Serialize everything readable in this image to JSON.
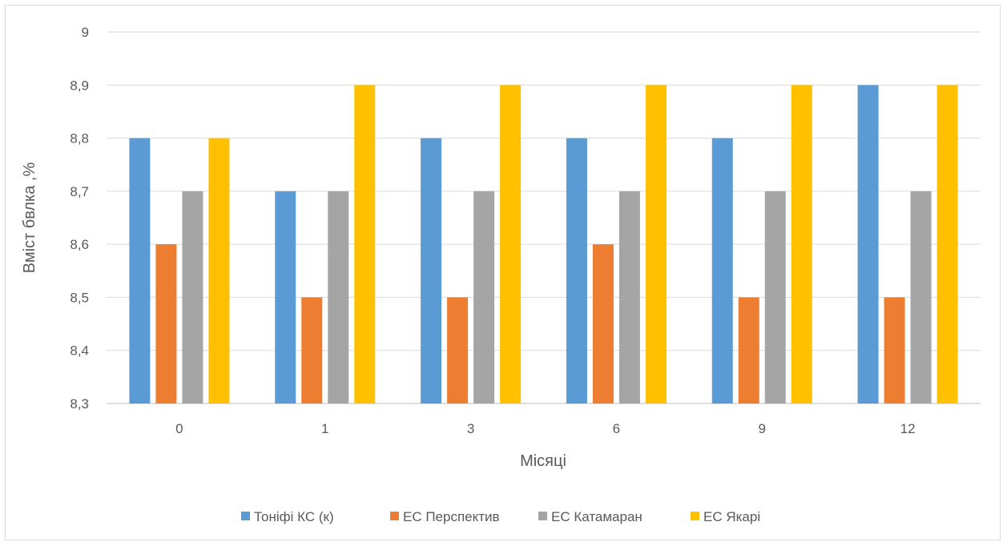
{
  "chart_data": {
    "type": "bar",
    "title": "",
    "xlabel": "Місяці",
    "ylabel": "Вміст бвлка ,%",
    "categories": [
      "0",
      "1",
      "3",
      "6",
      "9",
      "12"
    ],
    "ylim": [
      8.3,
      9.0
    ],
    "yticks": [
      "8,3",
      "8,4",
      "8,5",
      "8,6",
      "8,7",
      "8,8",
      "8,9",
      "9"
    ],
    "grid": true,
    "legend_position": "bottom",
    "series": [
      {
        "name": "Тоніфі КС (к)",
        "color": "#5b9bd5",
        "values": [
          8.8,
          8.7,
          8.8,
          8.8,
          8.8,
          8.9
        ]
      },
      {
        "name": "ЕС Перспектив",
        "color": "#ed7d31",
        "values": [
          8.6,
          8.5,
          8.5,
          8.6,
          8.5,
          8.5
        ]
      },
      {
        "name": "ЕС Катамаран",
        "color": "#a5a5a5",
        "values": [
          8.7,
          8.7,
          8.7,
          8.7,
          8.7,
          8.7
        ]
      },
      {
        "name": "ЕС Якарі",
        "color": "#ffc000",
        "values": [
          8.8,
          8.9,
          8.9,
          8.9,
          8.9,
          8.9
        ]
      }
    ]
  }
}
